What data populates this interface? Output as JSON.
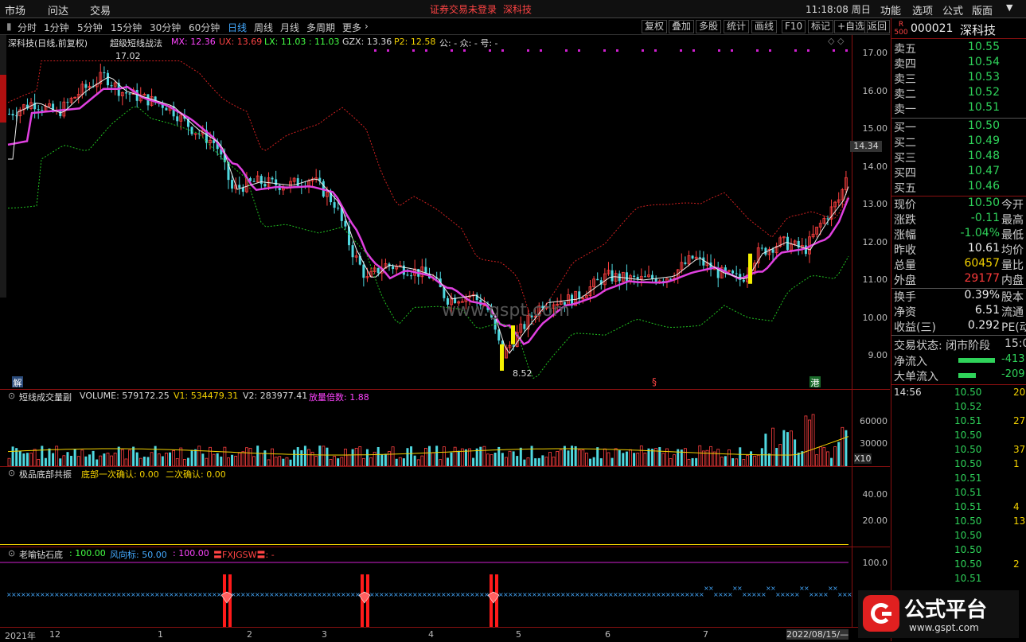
{
  "topbar": {
    "menus": [
      "市场",
      "问达",
      "交易"
    ],
    "notice": "证券交易未登录",
    "stock_title": "深科技",
    "time": "11:18:08 周日",
    "right_menus": [
      "功能",
      "选项",
      "公式",
      "版面"
    ]
  },
  "toolbar": {
    "periods": [
      "分时",
      "1分钟",
      "5分钟",
      "15分钟",
      "30分钟",
      "60分钟",
      "日线",
      "周线",
      "月线",
      "多周期",
      "更多"
    ],
    "active_period": "日线",
    "tools": [
      "复权",
      "叠加",
      "多股",
      "统计",
      "画线",
      "F10",
      "标记",
      "+自选",
      "返回"
    ]
  },
  "main_chart": {
    "header": "深科技(日线,前复权)",
    "indicator_name": "超级短线战法",
    "indicators": [
      {
        "text": "MX: 12.36",
        "color": "#ff44ff"
      },
      {
        "text": "UX: 13.69",
        "color": "#ff4444"
      },
      {
        "text": "LX: 11.03 : 11.03",
        "color": "#44ff44"
      },
      {
        "text": "GZX: 13.36",
        "color": "#dddddd"
      },
      {
        "text": "P2: 12.58",
        "color": "#f5d300"
      },
      {
        "text": "公: -  众: -  号: -",
        "color": "#dddddd"
      }
    ],
    "y_ticks": [
      "17.00",
      "16.00",
      "15.00",
      "14.00",
      "13.00",
      "12.00",
      "11.00",
      "10.00",
      "9.00"
    ],
    "price_tag": "14.34",
    "high_label": "17.02",
    "low_label": "8.52",
    "watermark": "www.gspt.com",
    "marker_jie": "解",
    "marker_s": "§",
    "marker_gang": "港"
  },
  "volume_panel": {
    "title": "短线成交量副",
    "values": [
      {
        "text": "VOLUME: 579172.25",
        "color": "#dddddd"
      },
      {
        "text": "V1: 534479.31",
        "color": "#f5d300"
      },
      {
        "text": "V2: 283977.41",
        "color": "#dddddd"
      },
      {
        "text": "放量倍数: 1.88",
        "color": "#ff44ff"
      }
    ],
    "y_ticks": [
      "60000",
      "30000"
    ],
    "unit": "X10"
  },
  "bottom_panel1": {
    "title": "极品底部共振",
    "values": [
      {
        "text": "底部一次确认: 0.00",
        "color": "#f5d300"
      },
      {
        "text": "二次确认: 0.00",
        "color": "#f5d300"
      }
    ],
    "y_ticks": [
      "40.00",
      "20.00"
    ]
  },
  "bottom_panel2": {
    "title": "老喻钻石底",
    "values": [
      {
        "text": ": 100.00",
        "color": "#44ff44"
      },
      {
        "text": "风向标: 50.00",
        "color": "#44aaff"
      },
      {
        "text": ": 100.00",
        "color": "#ff44ff"
      },
      {
        "text": "〓FXJGSW〓: -",
        "color": "#ff4444"
      }
    ],
    "y_ticks": [
      "100.0"
    ]
  },
  "x_axis": {
    "labels": [
      "2021年",
      "12",
      "1",
      "2",
      "3",
      "4",
      "5",
      "6",
      "7"
    ],
    "date_end": "2022/08/15/—"
  },
  "right_panel": {
    "code": "000021",
    "name": "深科技",
    "badge": "R",
    "badge_sub": "500",
    "asks": [
      {
        "label": "卖五",
        "price": "10.55"
      },
      {
        "label": "卖四",
        "price": "10.54"
      },
      {
        "label": "卖三",
        "price": "10.53"
      },
      {
        "label": "卖二",
        "price": "10.52"
      },
      {
        "label": "卖一",
        "price": "10.51"
      }
    ],
    "bids": [
      {
        "label": "买一",
        "price": "10.50"
      },
      {
        "label": "买二",
        "price": "10.49"
      },
      {
        "label": "买三",
        "price": "10.48"
      },
      {
        "label": "买四",
        "price": "10.47"
      },
      {
        "label": "买五",
        "price": "10.46"
      }
    ],
    "stats": [
      {
        "l1": "现价",
        "v": "10.50",
        "c": "green",
        "l2": "今开"
      },
      {
        "l1": "涨跌",
        "v": "-0.11",
        "c": "green",
        "l2": "最高"
      },
      {
        "l1": "涨幅",
        "v": "-1.04%",
        "c": "green",
        "l2": "最低"
      },
      {
        "l1": "昨收",
        "v": "10.61",
        "c": "white",
        "l2": "均价"
      },
      {
        "l1": "总量",
        "v": "60457",
        "c": "yellow",
        "l2": "量比"
      },
      {
        "l1": "外盘",
        "v": "29177",
        "c": "red",
        "l2": "内盘"
      }
    ],
    "stats2": [
      {
        "l1": "换手",
        "v": "0.39%",
        "c": "white",
        "l2": "股本"
      },
      {
        "l1": "净资",
        "v": "6.51",
        "c": "white",
        "l2": "流通"
      },
      {
        "l1": "收益(三)",
        "v": "0.292",
        "c": "white",
        "l2": "PE(动)"
      }
    ],
    "trade_status": "交易状态: 闭市阶段",
    "trade_time": "15:0",
    "net_inflow_label": "净流入",
    "net_inflow_value": "-413",
    "big_inflow_label": "大单流入",
    "big_inflow_value": "-209",
    "ticks_time": "14:56",
    "ticks": [
      {
        "p": "10.50",
        "v": "20"
      },
      {
        "p": "10.52",
        "v": ""
      },
      {
        "p": "10.51",
        "v": "27"
      },
      {
        "p": "10.50",
        "v": ""
      },
      {
        "p": "10.50",
        "v": "37"
      },
      {
        "p": "10.50",
        "v": "1"
      },
      {
        "p": "10.51",
        "v": ""
      },
      {
        "p": "10.51",
        "v": ""
      },
      {
        "p": "10.51",
        "v": "4"
      },
      {
        "p": "10.50",
        "v": "13"
      },
      {
        "p": "10.50",
        "v": ""
      },
      {
        "p": "10.50",
        "v": ""
      },
      {
        "p": "10.50",
        "v": "2"
      },
      {
        "p": "10.51",
        "v": ""
      }
    ]
  },
  "logo": {
    "text": "公式平台",
    "url": "www.gspt.com"
  }
}
